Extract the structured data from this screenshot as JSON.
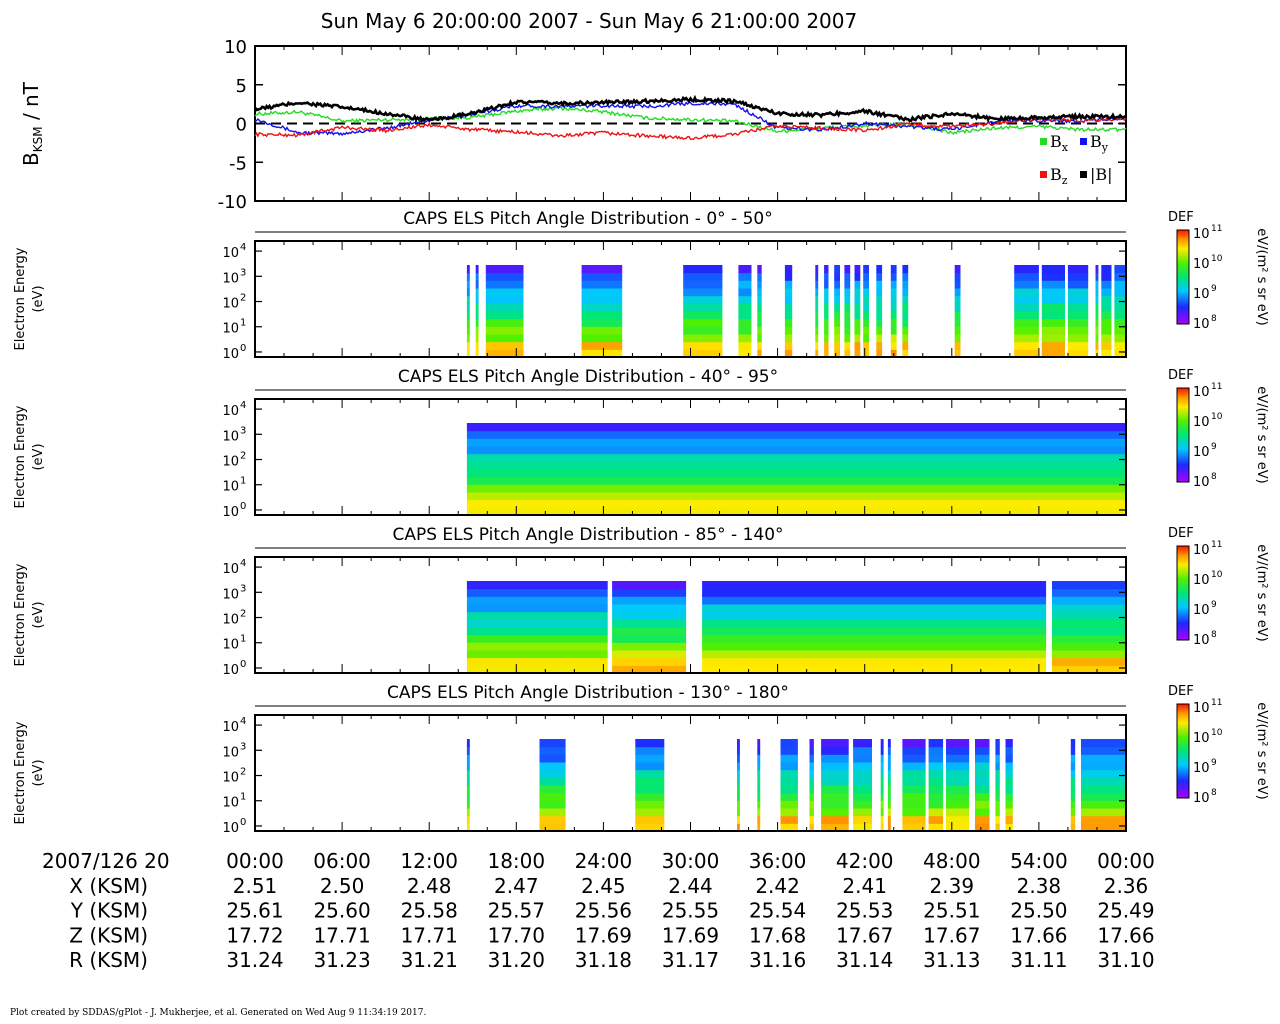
{
  "title": "Sun May 6 20:00:00 2007 - Sun May 6 21:00:00 2007",
  "footer": "Plot created by SDDAS/gPlot - J. Mukherjee, et al.  Generated on Wed Aug 9 11:34:19 2017.",
  "colors": {
    "bx": "#22dd22",
    "by": "#1111ee",
    "bz": "#ee1111",
    "bmag": "#000000"
  },
  "chart_data": [
    {
      "type": "line",
      "ylabel_main": "B",
      "ylabel_sub": "KSM",
      "ylabel_unit": " / nT",
      "ylim": [
        -10,
        10
      ],
      "yticks": [
        "10",
        "5",
        "0",
        "-5",
        "-10"
      ],
      "ytick_values": [
        10,
        5,
        0,
        -5,
        -10
      ],
      "x": [
        0,
        3,
        6,
        9,
        12,
        15,
        18,
        21,
        24,
        27,
        30,
        33,
        36,
        39,
        42,
        45,
        48,
        51,
        54,
        57,
        60
      ],
      "series": [
        {
          "key": "bx",
          "name": "B",
          "sub": "x",
          "values": [
            1.2,
            1.5,
            0.3,
            0.5,
            0.6,
            0.8,
            1.6,
            2.0,
            1.5,
            0.7,
            0.5,
            0.3,
            -1.0,
            -0.6,
            -0.3,
            -0.1,
            -1.2,
            -0.6,
            -0.4,
            -0.8,
            -0.8
          ]
        },
        {
          "key": "by",
          "name": "B",
          "sub": "y",
          "values": [
            0.6,
            -1.2,
            -1.3,
            -0.6,
            0.4,
            1.2,
            2.3,
            2.2,
            2.3,
            2.2,
            2.6,
            2.5,
            -0.6,
            -0.8,
            0.0,
            -0.4,
            -0.8,
            0.3,
            0.4,
            0.3,
            0.7
          ]
        },
        {
          "key": "bz",
          "name": "B",
          "sub": "z",
          "values": [
            -1.4,
            -1.5,
            -0.5,
            -0.9,
            -0.2,
            -0.8,
            -1.1,
            -1.6,
            -1.2,
            -1.6,
            -1.9,
            -1.4,
            -0.3,
            -0.6,
            -0.9,
            -0.1,
            -0.4,
            0.0,
            0.6,
            0.4,
            0.6
          ]
        },
        {
          "key": "bmag",
          "name": "|B|",
          "sub": "",
          "values": [
            1.8,
            2.7,
            2.1,
            1.3,
            0.4,
            1.3,
            2.8,
            2.6,
            2.7,
            2.9,
            3.1,
            2.9,
            1.3,
            1.1,
            1.6,
            0.5,
            1.3,
            0.6,
            0.8,
            0.9,
            0.9
          ]
        }
      ]
    },
    {
      "type": "heatmap",
      "title": "CAPS ELS Pitch Angle Distribution - 0° - 50°",
      "ylabel": "Electron Energy",
      "yunit": "(eV)",
      "yticks": [
        "10",
        "10",
        "10",
        "10",
        "10"
      ],
      "ytick_exp": [
        "0",
        "1",
        "2",
        "3",
        "4"
      ],
      "ylim_log10": [
        -0.2,
        4.4
      ],
      "intervals_min": [
        [
          14.6,
          14.8
        ],
        [
          15.2,
          15.4
        ],
        [
          15.9,
          18.5
        ],
        [
          22.5,
          25.3
        ],
        [
          29.5,
          32.2
        ],
        [
          33.3,
          34.2
        ],
        [
          34.6,
          34.9
        ],
        [
          36.5,
          37.0
        ],
        [
          38.6,
          38.8
        ],
        [
          39.2,
          39.5
        ],
        [
          39.9,
          40.3
        ],
        [
          40.6,
          41.0
        ],
        [
          41.3,
          41.7
        ],
        [
          41.9,
          42.3
        ],
        [
          42.8,
          43.2
        ],
        [
          43.8,
          44.2
        ],
        [
          44.6,
          45.0
        ],
        [
          48.2,
          48.6
        ],
        [
          52.3,
          54.0
        ],
        [
          54.2,
          55.8
        ],
        [
          56.0,
          57.4
        ],
        [
          57.9,
          58.1
        ],
        [
          58.3,
          59.0
        ],
        [
          59.2,
          60.0
        ]
      ]
    },
    {
      "type": "heatmap",
      "title": "CAPS ELS Pitch Angle Distribution - 40° - 95°",
      "ylabel": "Electron Energy",
      "yunit": "(eV)",
      "yticks": [
        "10",
        "10",
        "10",
        "10",
        "10"
      ],
      "ytick_exp": [
        "0",
        "1",
        "2",
        "3",
        "4"
      ],
      "ylim_log10": [
        -0.2,
        4.4
      ],
      "intervals_min": [
        [
          14.6,
          60.0
        ]
      ]
    },
    {
      "type": "heatmap",
      "title": "CAPS ELS Pitch Angle Distribution - 85° - 140°",
      "ylabel": "Electron Energy",
      "yunit": "(eV)",
      "yticks": [
        "10",
        "10",
        "10",
        "10",
        "10"
      ],
      "ytick_exp": [
        "0",
        "1",
        "2",
        "3",
        "4"
      ],
      "ylim_log10": [
        -0.2,
        4.4
      ],
      "intervals_min": [
        [
          14.6,
          24.3
        ],
        [
          24.6,
          29.7
        ],
        [
          30.8,
          54.5
        ],
        [
          54.9,
          60.0
        ]
      ]
    },
    {
      "type": "heatmap",
      "title": "CAPS ELS Pitch Angle Distribution - 130° - 180°",
      "ylabel": "Electron Energy",
      "yunit": "(eV)",
      "yticks": [
        "10",
        "10",
        "10",
        "10",
        "10"
      ],
      "ytick_exp": [
        "0",
        "1",
        "2",
        "3",
        "4"
      ],
      "ylim_log10": [
        -0.2,
        4.4
      ],
      "intervals_min": [
        [
          14.6,
          14.8
        ],
        [
          19.6,
          21.4
        ],
        [
          26.2,
          28.2
        ],
        [
          33.2,
          33.4
        ],
        [
          34.6,
          34.8
        ],
        [
          36.2,
          37.4
        ],
        [
          38.2,
          38.5
        ],
        [
          39.0,
          40.9
        ],
        [
          41.2,
          42.5
        ],
        [
          43.1,
          43.3
        ],
        [
          43.6,
          43.8
        ],
        [
          44.6,
          46.2
        ],
        [
          46.4,
          47.4
        ],
        [
          47.6,
          49.2
        ],
        [
          49.6,
          50.6
        ],
        [
          51.0,
          51.3
        ],
        [
          51.7,
          52.2
        ],
        [
          56.2,
          56.5
        ],
        [
          56.9,
          60.0
        ]
      ]
    }
  ],
  "colorbar": {
    "label": "DEF",
    "unit": "eV/(m² s sr eV)",
    "ticks": [
      "10",
      "10",
      "10",
      "10"
    ],
    "tick_exp": [
      "11",
      "10",
      "9",
      "8"
    ]
  },
  "time_axis": {
    "date_label": "2007/126 20",
    "ticks": [
      "00:00",
      "06:00",
      "12:00",
      "18:00",
      "24:00",
      "30:00",
      "36:00",
      "42:00",
      "48:00",
      "54:00",
      "00:00"
    ]
  },
  "ephemeris": [
    {
      "label": "X (KSM)",
      "values": [
        "2.51",
        "2.50",
        "2.48",
        "2.47",
        "2.45",
        "2.44",
        "2.42",
        "2.41",
        "2.39",
        "2.38",
        "2.36"
      ]
    },
    {
      "label": "Y (KSM)",
      "values": [
        "25.61",
        "25.60",
        "25.58",
        "25.57",
        "25.56",
        "25.55",
        "25.54",
        "25.53",
        "25.51",
        "25.50",
        "25.49"
      ]
    },
    {
      "label": "Z (KSM)",
      "values": [
        "17.72",
        "17.71",
        "17.71",
        "17.70",
        "17.69",
        "17.69",
        "17.68",
        "17.67",
        "17.67",
        "17.66",
        "17.66"
      ]
    },
    {
      "label": "R (KSM)",
      "values": [
        "31.24",
        "31.23",
        "31.21",
        "31.20",
        "31.18",
        "31.17",
        "31.16",
        "31.14",
        "31.13",
        "31.11",
        "31.10"
      ]
    }
  ]
}
